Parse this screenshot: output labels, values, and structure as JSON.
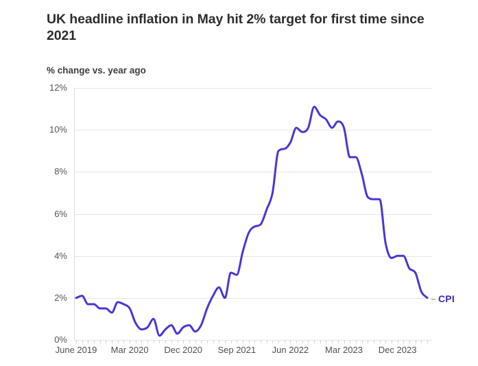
{
  "header": {
    "title_lines": [
      "UK headline inflation in May hit 2% target for first time since",
      "2021"
    ],
    "subtitle": "% change vs. year ago"
  },
  "chart_data": {
    "type": "line",
    "title": "UK headline inflation in May hit 2% target for first time since 2021",
    "subtitle": "% change vs. year ago",
    "xlabel": "",
    "ylabel": "% change vs. year ago",
    "ylim": [
      0,
      12
    ],
    "grid": "horizontal",
    "legend_position": "end-of-line-label",
    "minor_x_ticks": "monthly",
    "y_ticks": [
      {
        "value": 0,
        "label": "0%"
      },
      {
        "value": 2,
        "label": "2%"
      },
      {
        "value": 4,
        "label": "4%"
      },
      {
        "value": 6,
        "label": "6%"
      },
      {
        "value": 8,
        "label": "8%"
      },
      {
        "value": 10,
        "label": "10%"
      },
      {
        "value": 12,
        "label": "12%"
      }
    ],
    "x_ticks": [
      {
        "index": 0,
        "label": "June 2019"
      },
      {
        "index": 9,
        "label": "Mar 2020"
      },
      {
        "index": 18,
        "label": "Dec 2020"
      },
      {
        "index": 27,
        "label": "Sep 2021"
      },
      {
        "index": 36,
        "label": "Jun 2022"
      },
      {
        "index": 45,
        "label": "Mar 2023"
      },
      {
        "index": 54,
        "label": "Dec 2023"
      }
    ],
    "series": [
      {
        "name": "CPI",
        "x": [
          "Jun 2019",
          "Jul 2019",
          "Aug 2019",
          "Sep 2019",
          "Oct 2019",
          "Nov 2019",
          "Dec 2019",
          "Jan 2020",
          "Feb 2020",
          "Mar 2020",
          "Apr 2020",
          "May 2020",
          "Jun 2020",
          "Jul 2020",
          "Aug 2020",
          "Sep 2020",
          "Oct 2020",
          "Nov 2020",
          "Dec 2020",
          "Jan 2021",
          "Feb 2021",
          "Mar 2021",
          "Apr 2021",
          "May 2021",
          "Jun 2021",
          "Jul 2021",
          "Aug 2021",
          "Sep 2021",
          "Oct 2021",
          "Nov 2021",
          "Dec 2021",
          "Jan 2022",
          "Feb 2022",
          "Mar 2022",
          "Apr 2022",
          "May 2022",
          "Jun 2022",
          "Jul 2022",
          "Aug 2022",
          "Sep 2022",
          "Oct 2022",
          "Nov 2022",
          "Dec 2022",
          "Jan 2023",
          "Feb 2023",
          "Mar 2023",
          "Apr 2023",
          "May 2023",
          "Jun 2023",
          "Jul 2023",
          "Aug 2023",
          "Sep 2023",
          "Oct 2023",
          "Nov 2023",
          "Dec 2023",
          "Jan 2024",
          "Feb 2024",
          "Mar 2024",
          "Apr 2024",
          "May 2024"
        ],
        "values": [
          2.0,
          2.1,
          1.7,
          1.7,
          1.5,
          1.5,
          1.3,
          1.8,
          1.7,
          1.5,
          0.8,
          0.5,
          0.6,
          1.0,
          0.2,
          0.5,
          0.7,
          0.3,
          0.6,
          0.7,
          0.4,
          0.7,
          1.5,
          2.1,
          2.5,
          2.0,
          3.2,
          3.1,
          4.2,
          5.1,
          5.4,
          5.5,
          6.2,
          7.0,
          9.0,
          9.1,
          9.4,
          10.1,
          9.9,
          10.1,
          11.1,
          10.7,
          10.5,
          10.1,
          10.4,
          10.1,
          8.7,
          8.7,
          7.9,
          6.8,
          6.7,
          6.7,
          4.6,
          3.9,
          4.0,
          4.0,
          3.4,
          3.2,
          2.3,
          2.0
        ]
      }
    ]
  },
  "colors": {
    "line": "#4836d6",
    "series_label": "#3c2bbd",
    "grid": "#e5e5e5",
    "axis": "#d9d9d9",
    "tick": "#d2d2d2",
    "leader_dash": "#a9a9a9",
    "title_text": "#2d2d2d",
    "subtitle_text": "#3d3d3d",
    "axis_text": "#555555",
    "background": "#ffffff"
  }
}
